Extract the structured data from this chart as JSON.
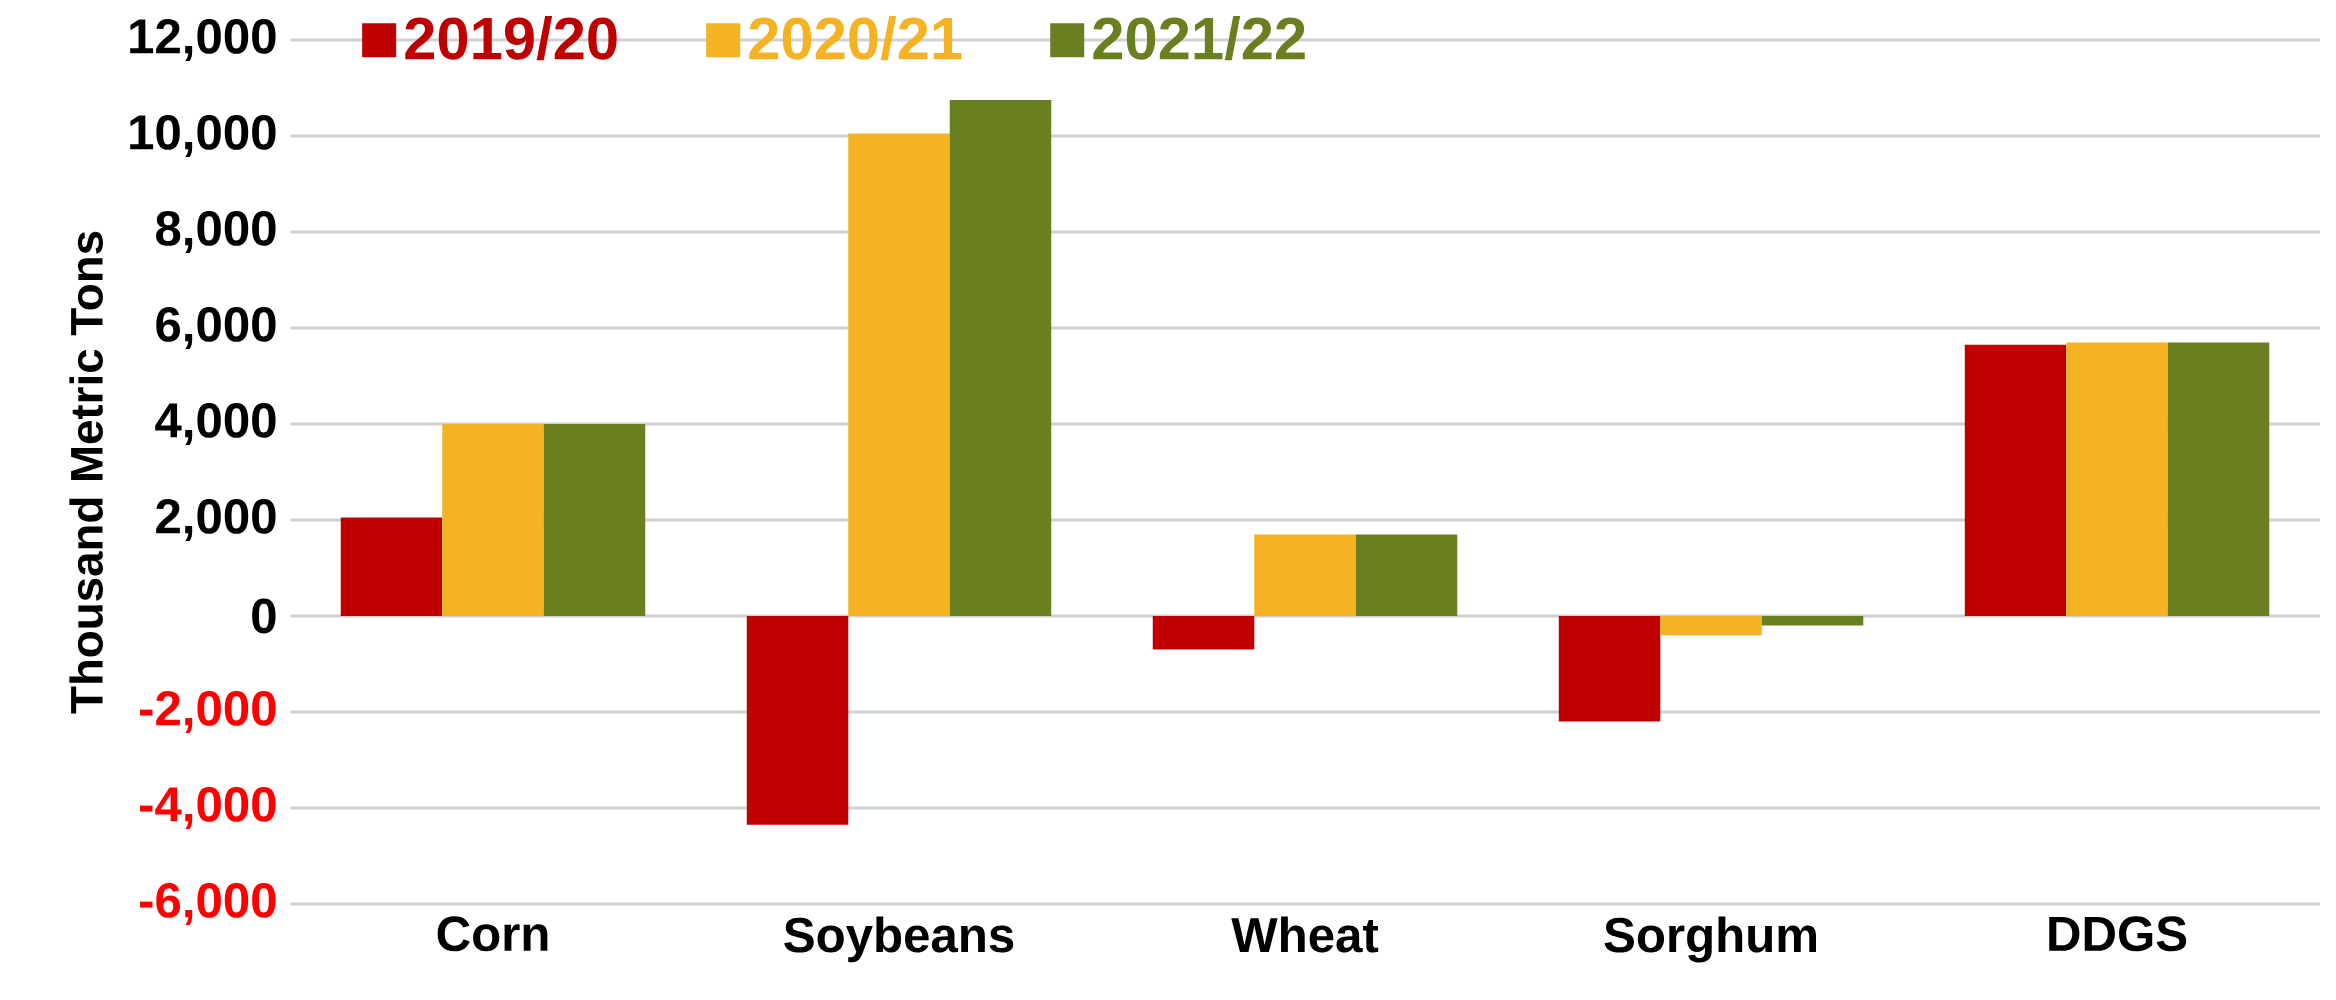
{
  "chart_data": {
    "type": "bar",
    "ylabel": "Thousand Metric Tons",
    "categories": [
      "Corn",
      "Soybeans",
      "Wheat",
      "Sorghum",
      "DDGS"
    ],
    "series": [
      {
        "name": "2019/20",
        "color": "#c00000",
        "values": [
          2050,
          -4350,
          -700,
          -2200,
          5650
        ]
      },
      {
        "name": "2020/21",
        "color": "#f5b324",
        "values": [
          4000,
          10050,
          1700,
          -400,
          5700
        ]
      },
      {
        "name": "2021/22",
        "color": "#6a7f1f",
        "values": [
          4000,
          10750,
          1700,
          -200,
          5700
        ]
      }
    ],
    "ylim": [
      -6000,
      12000
    ],
    "yticks": [
      {
        "value": -6000,
        "label": "-6,000"
      },
      {
        "value": -4000,
        "label": "-4,000"
      },
      {
        "value": -2000,
        "label": "-2,000"
      },
      0,
      {
        "value": 2000,
        "label": "2,000"
      },
      {
        "value": 4000,
        "label": "4,000"
      },
      {
        "value": 6000,
        "label": "6,000"
      },
      {
        "value": 8000,
        "label": "8,000"
      },
      {
        "value": 10000,
        "label": "10,000"
      },
      {
        "value": 12000,
        "label": "12,000"
      }
    ],
    "grid": "y",
    "legend": "top"
  }
}
